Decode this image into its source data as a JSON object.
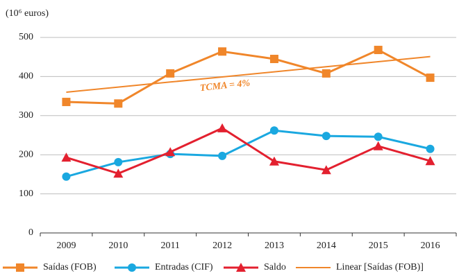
{
  "chart_data": {
    "type": "line",
    "y_label": "(10⁶ euros)",
    "annotation": "TCMA = 4%",
    "categories": [
      "2009",
      "2010",
      "2011",
      "2012",
      "2013",
      "2014",
      "2015",
      "2016"
    ],
    "series": [
      {
        "name": "Saídas (FOB)",
        "color": "#f0862a",
        "marker": "square",
        "values": [
          335,
          331,
          408,
          464,
          445,
          408,
          468,
          397
        ]
      },
      {
        "name": "Entradas (CIF)",
        "color": "#1aa8e0",
        "marker": "circle",
        "values": [
          144,
          181,
          202,
          197,
          262,
          248,
          246,
          215
        ]
      },
      {
        "name": "Saldo",
        "color": "#e3202f",
        "marker": "triangle",
        "values": [
          193,
          152,
          207,
          268,
          183,
          161,
          222,
          184
        ]
      },
      {
        "name": "Linear [Saídas (FOB)]",
        "color": "#f0862a",
        "marker": "none",
        "values": [
          360,
          373,
          386,
          399,
          412,
          425,
          438,
          451
        ]
      }
    ],
    "ylim": [
      0,
      500
    ],
    "yticks": [
      0,
      100,
      200,
      300,
      400,
      500
    ],
    "grid": true
  }
}
